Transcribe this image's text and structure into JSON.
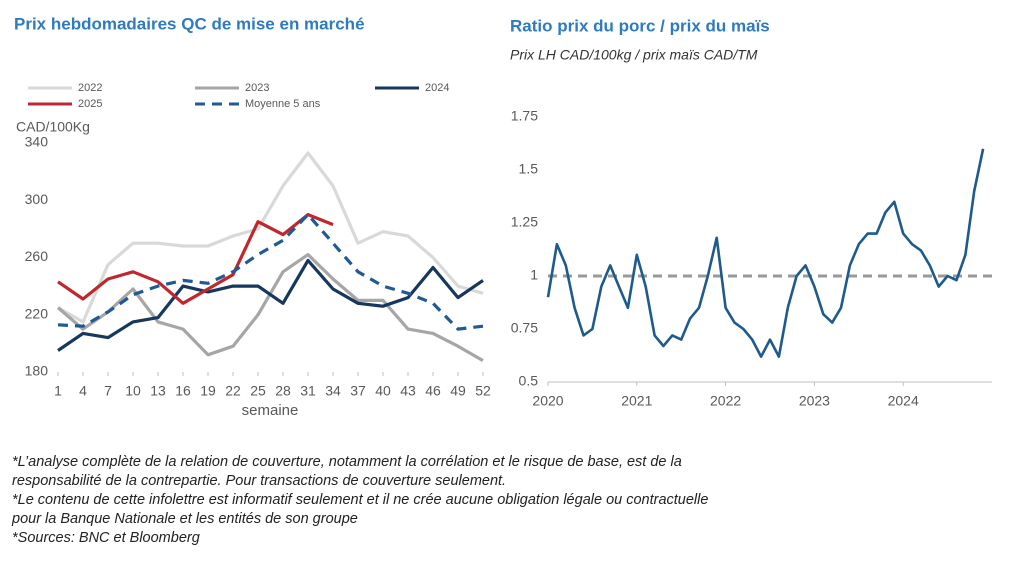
{
  "chart_data": [
    {
      "type": "line",
      "title": "Prix hebdomadaires QC de mise en marché",
      "y_label": "CAD/100Kg",
      "x_label": "semaine",
      "x": [
        1,
        4,
        7,
        10,
        13,
        16,
        19,
        22,
        25,
        28,
        31,
        34,
        37,
        40,
        43,
        46,
        49,
        52
      ],
      "xlim": [
        1,
        52
      ],
      "xticks": [
        1,
        4,
        7,
        10,
        13,
        16,
        19,
        22,
        25,
        28,
        31,
        34,
        37,
        40,
        43,
        46,
        49,
        52
      ],
      "ylim": [
        180,
        340
      ],
      "yticks": [
        180,
        220,
        260,
        300,
        340
      ],
      "grid": false,
      "legend": "top-left",
      "series": [
        {
          "name": "2022",
          "color": "#d9d9d9",
          "values": [
            225,
            215,
            255,
            270,
            270,
            268,
            268,
            275,
            280,
            310,
            333,
            310,
            270,
            278,
            275,
            260,
            240,
            235
          ]
        },
        {
          "name": "2023",
          "color": "#a6a6a6",
          "values": [
            225,
            210,
            222,
            238,
            215,
            210,
            192,
            198,
            220,
            250,
            262,
            245,
            230,
            230,
            210,
            207,
            198,
            188
          ]
        },
        {
          "name": "2024",
          "color": "#17375e",
          "values": [
            195,
            207,
            204,
            215,
            218,
            240,
            236,
            240,
            240,
            228,
            258,
            238,
            228,
            226,
            232,
            253,
            232,
            244
          ]
        },
        {
          "name": "2025",
          "color": "#c0272d",
          "values": [
            243,
            231,
            245,
            250,
            243,
            228,
            238,
            248,
            285,
            276,
            290,
            283,
            null,
            null,
            null,
            null,
            null,
            null
          ]
        },
        {
          "name": "Moyenne 5 ans",
          "color": "#1f5a96",
          "dashed": true,
          "values": [
            213,
            212,
            222,
            234,
            240,
            244,
            242,
            250,
            262,
            272,
            290,
            270,
            250,
            240,
            235,
            228,
            210,
            212
          ]
        }
      ]
    },
    {
      "type": "line",
      "title": "Ratio prix du porc / prix du maïs",
      "subtitle": "Prix LH CAD/100kg / prix maïs CAD/TM",
      "x": [
        2020.0,
        2020.1,
        2020.2,
        2020.3,
        2020.4,
        2020.5,
        2020.6,
        2020.7,
        2020.8,
        2020.9,
        2021.0,
        2021.1,
        2021.2,
        2021.3,
        2021.4,
        2021.5,
        2021.6,
        2021.7,
        2021.8,
        2021.9,
        2022.0,
        2022.1,
        2022.2,
        2022.3,
        2022.4,
        2022.5,
        2022.6,
        2022.7,
        2022.8,
        2022.9,
        2023.0,
        2023.1,
        2023.2,
        2023.3,
        2023.4,
        2023.5,
        2023.6,
        2023.7,
        2023.8,
        2023.9,
        2024.0,
        2024.1,
        2024.2,
        2024.3,
        2024.4,
        2024.5,
        2024.6,
        2024.7,
        2024.8,
        2024.9
      ],
      "xlim": [
        2020,
        2025
      ],
      "xticks": [
        2020,
        2021,
        2022,
        2023,
        2024
      ],
      "ylim": [
        0.5,
        1.75
      ],
      "yticks": [
        0.5,
        0.75,
        1,
        1.25,
        1.5,
        1.75
      ],
      "grid": false,
      "reference_line": 1,
      "series": [
        {
          "color": "#1f5a8c",
          "values": [
            0.9,
            1.15,
            1.05,
            0.85,
            0.72,
            0.75,
            0.95,
            1.05,
            0.95,
            0.85,
            1.1,
            0.95,
            0.72,
            0.67,
            0.72,
            0.7,
            0.8,
            0.85,
            1.0,
            1.18,
            0.85,
            0.78,
            0.75,
            0.7,
            0.62,
            0.7,
            0.62,
            0.85,
            1.0,
            1.05,
            0.95,
            0.82,
            0.78,
            0.85,
            1.05,
            1.15,
            1.2,
            1.2,
            1.3,
            1.35,
            1.2,
            1.15,
            1.12,
            1.05,
            0.95,
            1.0,
            0.98,
            1.1,
            1.4,
            1.6
          ]
        }
      ]
    }
  ],
  "footnotes": [
    "*L’analyse complète de la relation de couverture, notamment la corrélation et le risque de base, est de la",
    "responsabilité de la contrepartie. Pour transactions de couverture seulement.",
    "*Le contenu de cette infolettre est informatif seulement et il ne crée aucune obligation légale ou contractuelle",
    "pour la Banque Nationale et les entités de son groupe",
    "*Sources: BNC et Bloomberg"
  ]
}
